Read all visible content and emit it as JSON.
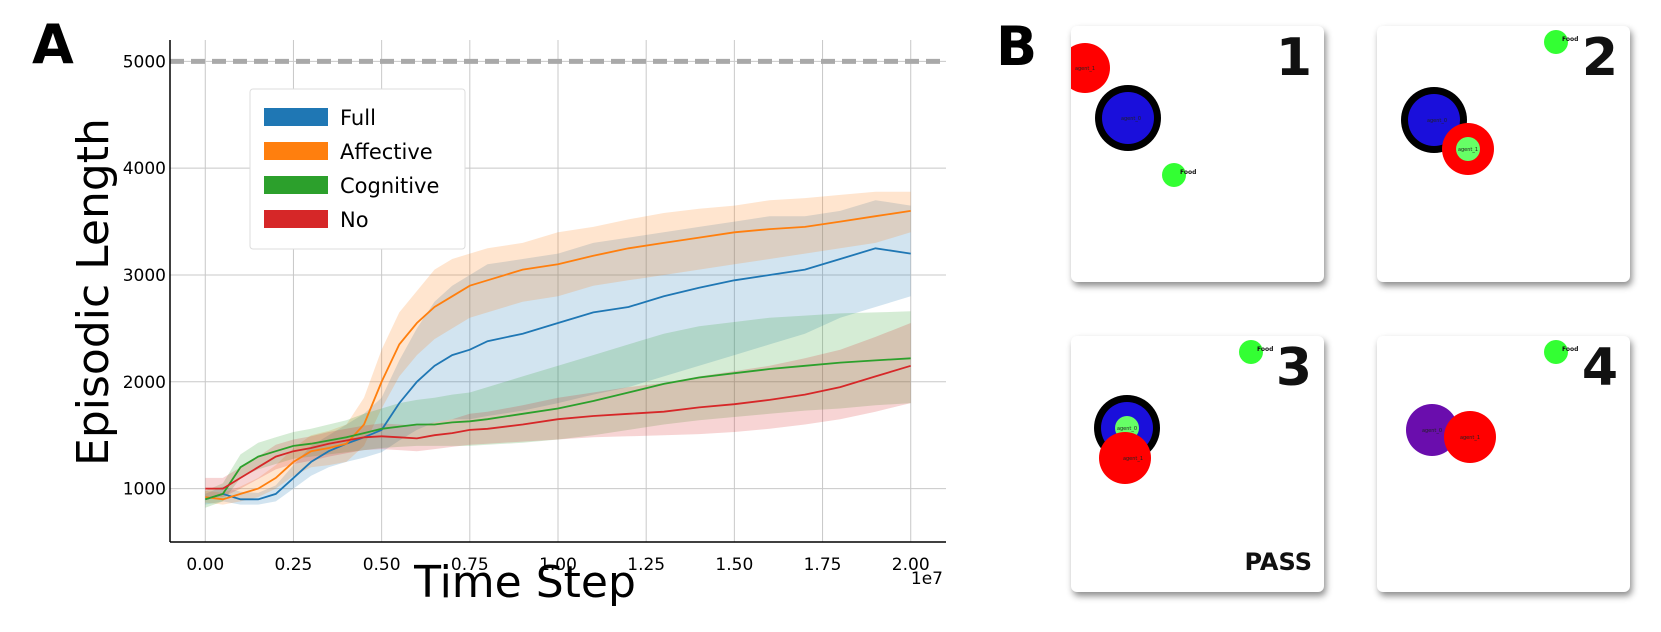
{
  "panel_a_label": "A",
  "panel_b_label": "B",
  "chart_data": {
    "type": "line",
    "title": "",
    "xlabel": "Time Step",
    "ylabel": "Episodic Length",
    "x_scale_label": "1e7",
    "xlim": [
      -0.1,
      2.1
    ],
    "ylim": [
      500,
      5200
    ],
    "xticks": [
      0.0,
      0.25,
      0.5,
      0.75,
      1.0,
      1.25,
      1.5,
      1.75,
      2.0
    ],
    "xtick_labels": [
      "0.00",
      "0.25",
      "0.50",
      "0.75",
      "1.00",
      "1.25",
      "1.50",
      "1.75",
      "2.00"
    ],
    "yticks": [
      1000,
      2000,
      3000,
      4000,
      5000
    ],
    "ytick_labels": [
      "1000",
      "2000",
      "3000",
      "4000",
      "5000"
    ],
    "grid": true,
    "reference_line": {
      "y": 5000,
      "style": "dashed",
      "color": "#a9a9a9"
    },
    "legend_position": "upper-left",
    "x": [
      0.0,
      0.05,
      0.1,
      0.15,
      0.2,
      0.25,
      0.3,
      0.35,
      0.4,
      0.45,
      0.5,
      0.55,
      0.6,
      0.65,
      0.7,
      0.75,
      0.8,
      0.9,
      1.0,
      1.1,
      1.2,
      1.3,
      1.4,
      1.5,
      1.6,
      1.7,
      1.8,
      1.9,
      2.0
    ],
    "series": [
      {
        "name": "Full",
        "color": "#1f77b4",
        "values": [
          900,
          950,
          900,
          900,
          950,
          1100,
          1250,
          1350,
          1420,
          1480,
          1550,
          1800,
          2000,
          2150,
          2250,
          2300,
          2380,
          2450,
          2550,
          2650,
          2700,
          2800,
          2880,
          2950,
          3000,
          3050,
          3150,
          3250,
          3200
        ],
        "lower": [
          850,
          880,
          850,
          850,
          880,
          1000,
          1120,
          1200,
          1250,
          1290,
          1340,
          1450,
          1550,
          1620,
          1650,
          1650,
          1680,
          1730,
          1800,
          1880,
          1950,
          2050,
          2150,
          2250,
          2350,
          2450,
          2600,
          2700,
          2800
        ],
        "upper": [
          950,
          1020,
          970,
          960,
          1030,
          1220,
          1400,
          1500,
          1600,
          1700,
          1850,
          2200,
          2500,
          2750,
          2900,
          3000,
          3100,
          3150,
          3200,
          3300,
          3350,
          3400,
          3450,
          3500,
          3550,
          3550,
          3600,
          3700,
          3650
        ]
      },
      {
        "name": "Affective",
        "color": "#ff7f0e",
        "values": [
          920,
          900,
          950,
          1000,
          1100,
          1250,
          1350,
          1380,
          1420,
          1600,
          2000,
          2350,
          2550,
          2700,
          2800,
          2900,
          2950,
          3050,
          3100,
          3180,
          3250,
          3300,
          3350,
          3400,
          3430,
          3450,
          3500,
          3550,
          3600
        ],
        "lower": [
          870,
          850,
          880,
          920,
          1000,
          1120,
          1200,
          1220,
          1250,
          1400,
          1750,
          2050,
          2250,
          2400,
          2500,
          2600,
          2650,
          2750,
          2800,
          2900,
          2950,
          3000,
          3050,
          3100,
          3150,
          3200,
          3250,
          3300,
          3400
        ],
        "upper": [
          980,
          960,
          1020,
          1100,
          1220,
          1380,
          1500,
          1540,
          1600,
          1850,
          2300,
          2650,
          2850,
          3050,
          3150,
          3200,
          3250,
          3300,
          3400,
          3450,
          3520,
          3580,
          3620,
          3650,
          3700,
          3720,
          3750,
          3780,
          3780
        ]
      },
      {
        "name": "Cognitive",
        "color": "#2ca02c",
        "values": [
          900,
          950,
          1200,
          1300,
          1350,
          1400,
          1420,
          1450,
          1480,
          1520,
          1560,
          1580,
          1600,
          1600,
          1620,
          1630,
          1650,
          1700,
          1750,
          1820,
          1900,
          1980,
          2040,
          2080,
          2120,
          2150,
          2180,
          2200,
          2220
        ],
        "lower": [
          820,
          880,
          1100,
          1180,
          1230,
          1280,
          1300,
          1320,
          1340,
          1360,
          1380,
          1390,
          1400,
          1400,
          1400,
          1400,
          1410,
          1430,
          1460,
          1500,
          1550,
          1600,
          1640,
          1670,
          1700,
          1730,
          1750,
          1780,
          1800
        ],
        "upper": [
          980,
          1050,
          1320,
          1430,
          1480,
          1530,
          1560,
          1600,
          1640,
          1700,
          1750,
          1800,
          1830,
          1850,
          1880,
          1900,
          1950,
          2050,
          2150,
          2250,
          2350,
          2450,
          2520,
          2560,
          2600,
          2620,
          2640,
          2650,
          2660
        ]
      },
      {
        "name": "No",
        "color": "#d62728",
        "values": [
          1000,
          1000,
          1100,
          1200,
          1300,
          1350,
          1380,
          1420,
          1450,
          1480,
          1490,
          1480,
          1470,
          1500,
          1520,
          1550,
          1560,
          1600,
          1650,
          1680,
          1700,
          1720,
          1760,
          1790,
          1830,
          1880,
          1950,
          2050,
          2150
        ],
        "lower": [
          920,
          920,
          1000,
          1090,
          1180,
          1230,
          1260,
          1300,
          1330,
          1360,
          1370,
          1360,
          1350,
          1370,
          1390,
          1410,
          1420,
          1440,
          1460,
          1480,
          1490,
          1500,
          1510,
          1530,
          1560,
          1600,
          1650,
          1720,
          1800
        ],
        "upper": [
          1100,
          1100,
          1200,
          1300,
          1410,
          1460,
          1490,
          1530,
          1560,
          1590,
          1610,
          1600,
          1590,
          1620,
          1650,
          1700,
          1720,
          1780,
          1850,
          1900,
          1950,
          1990,
          2050,
          2100,
          2150,
          2220,
          2300,
          2420,
          2550
        ]
      }
    ]
  },
  "scenes": [
    {
      "number": "1",
      "status": "",
      "objects": [
        {
          "type": "agent",
          "color": "#ff0000",
          "ring": false,
          "label": "agent_1"
        },
        {
          "type": "agent",
          "color": "#1a0fdb",
          "ring": true,
          "label": "agent_0"
        },
        {
          "type": "food",
          "color": "#33ff33",
          "label": "Food"
        }
      ]
    },
    {
      "number": "2",
      "status": "",
      "objects": [
        {
          "type": "food",
          "color": "#33ff33",
          "label": "Food"
        },
        {
          "type": "agent",
          "color": "#1a0fdb",
          "ring": true,
          "label": "agent_0"
        },
        {
          "type": "agent",
          "color": "#ff0000",
          "ring": false,
          "label": "agent_1",
          "holding_food": true
        }
      ]
    },
    {
      "number": "3",
      "status": "PASS",
      "objects": [
        {
          "type": "food",
          "color": "#33ff33",
          "label": "Food"
        },
        {
          "type": "agent",
          "color": "#1a0fdb",
          "ring": true,
          "label": "agent_0",
          "holding_food": true
        },
        {
          "type": "agent",
          "color": "#ff0000",
          "ring": false,
          "label": "agent_1"
        }
      ]
    },
    {
      "number": "4",
      "status": "",
      "objects": [
        {
          "type": "food",
          "color": "#33ff33",
          "label": "Food"
        },
        {
          "type": "agent",
          "color": "#6a0dad",
          "ring": false,
          "label": "agent_0"
        },
        {
          "type": "agent",
          "color": "#ff0000",
          "ring": false,
          "label": "agent_1"
        }
      ]
    }
  ]
}
